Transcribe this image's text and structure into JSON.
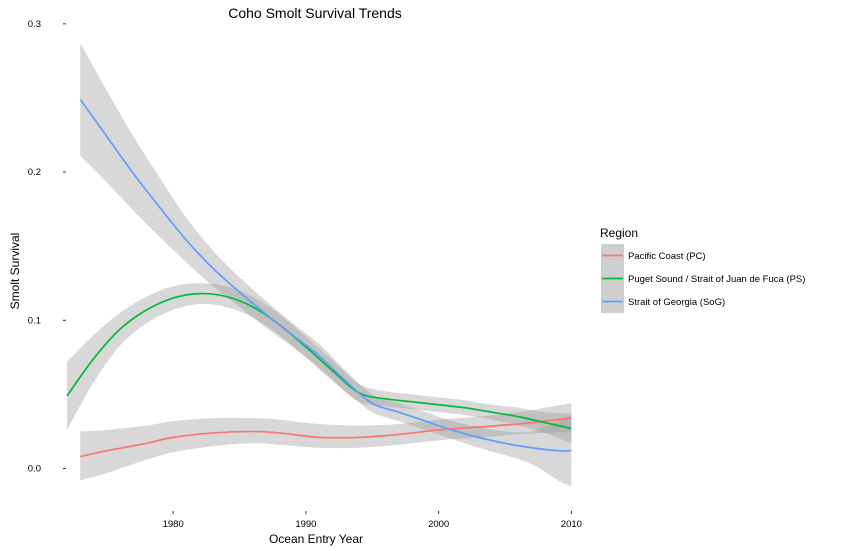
{
  "chart_data": {
    "type": "line",
    "title": "Coho Smolt Survival Trends",
    "xlabel": "Ocean Entry Year",
    "ylabel": "Smolt Survival",
    "xlim": [
      1972,
      2010.5
    ],
    "ylim": [
      -0.028,
      0.308
    ],
    "x_ticks": [
      1980,
      1990,
      2000,
      2010
    ],
    "x_tick_labels": [
      "1980",
      "1990",
      "2000",
      "2010"
    ],
    "y_ticks": [
      0.0,
      0.1,
      0.2,
      0.3
    ],
    "y_tick_labels": [
      "0.0",
      "0.1",
      "0.2",
      "0.3"
    ],
    "grid": false,
    "legend": {
      "title": "Region",
      "placement": "right"
    },
    "series": [
      {
        "name": "Pacific Coast (PC)",
        "color": "#F8766D",
        "x": [
          1973,
          1975,
          1978,
          1980,
          1983,
          1986,
          1988,
          1991,
          1994,
          1997,
          2000,
          2003,
          2006,
          2008,
          2010
        ],
        "y": [
          0.008,
          0.012,
          0.017,
          0.021,
          0.024,
          0.025,
          0.024,
          0.021,
          0.021,
          0.023,
          0.026,
          0.028,
          0.03,
          0.032,
          0.034
        ],
        "lower": [
          -0.008,
          -0.003,
          0.006,
          0.011,
          0.015,
          0.017,
          0.016,
          0.014,
          0.014,
          0.016,
          0.019,
          0.021,
          0.023,
          0.024,
          0.025
        ],
        "upper": [
          0.025,
          0.026,
          0.029,
          0.032,
          0.034,
          0.034,
          0.033,
          0.03,
          0.029,
          0.03,
          0.033,
          0.035,
          0.038,
          0.041,
          0.044
        ]
      },
      {
        "name": "Puget Sound / Strait of Juan de Fuca (PS)",
        "color": "#00BA38",
        "x": [
          1972,
          1974,
          1976,
          1978,
          1980,
          1982,
          1984,
          1986,
          1988,
          1990,
          1992,
          1994,
          1996,
          1998,
          2000,
          2002,
          2004,
          2006,
          2008,
          2010
        ],
        "y": [
          0.049,
          0.074,
          0.094,
          0.107,
          0.115,
          0.118,
          0.116,
          0.109,
          0.097,
          0.082,
          0.066,
          0.051,
          0.047,
          0.045,
          0.043,
          0.041,
          0.038,
          0.035,
          0.031,
          0.027
        ],
        "lower": [
          0.026,
          0.058,
          0.083,
          0.098,
          0.107,
          0.111,
          0.109,
          0.102,
          0.09,
          0.075,
          0.059,
          0.045,
          0.042,
          0.04,
          0.038,
          0.036,
          0.033,
          0.029,
          0.024,
          0.017
        ],
        "upper": [
          0.072,
          0.09,
          0.105,
          0.116,
          0.123,
          0.125,
          0.123,
          0.116,
          0.104,
          0.089,
          0.073,
          0.057,
          0.052,
          0.05,
          0.048,
          0.046,
          0.043,
          0.041,
          0.038,
          0.037
        ]
      },
      {
        "name": "Strait of Georgia (SoG)",
        "color": "#619CFF",
        "x": [
          1973,
          1975,
          1977,
          1979,
          1981,
          1983,
          1985,
          1987,
          1989,
          1991,
          1993,
          1995,
          1997,
          1999,
          2001,
          2003,
          2005,
          2007,
          2009,
          2010
        ],
        "y": [
          0.249,
          0.224,
          0.199,
          0.176,
          0.154,
          0.135,
          0.119,
          0.104,
          0.09,
          0.076,
          0.059,
          0.044,
          0.038,
          0.032,
          0.026,
          0.021,
          0.017,
          0.014,
          0.012,
          0.012
        ],
        "lower": [
          0.211,
          0.193,
          0.174,
          0.156,
          0.139,
          0.123,
          0.109,
          0.095,
          0.082,
          0.068,
          0.052,
          0.038,
          0.032,
          0.026,
          0.02,
          0.014,
          0.009,
          0.003,
          -0.008,
          -0.012
        ],
        "upper": [
          0.287,
          0.255,
          0.224,
          0.196,
          0.169,
          0.147,
          0.129,
          0.113,
          0.098,
          0.084,
          0.066,
          0.05,
          0.044,
          0.038,
          0.032,
          0.028,
          0.025,
          0.025,
          0.032,
          0.036
        ]
      }
    ]
  }
}
